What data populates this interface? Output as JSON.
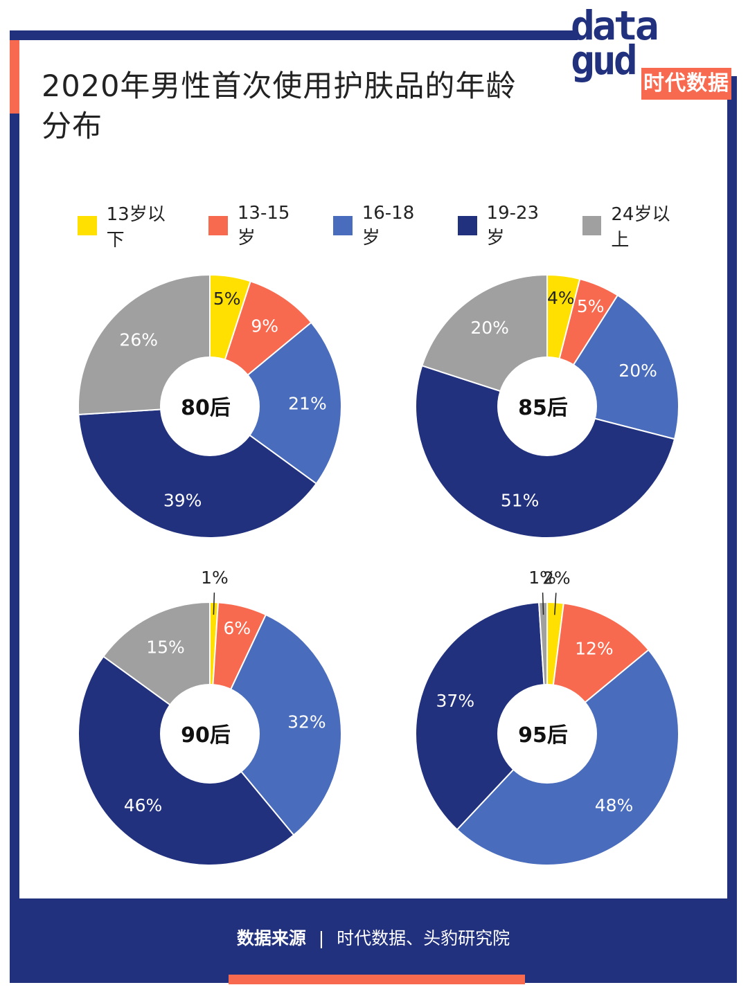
{
  "title": "2020年男性首次使用护肤品的年龄分布",
  "logo": {
    "word_top": "data",
    "word_bottom": "gud",
    "brand": "时代数据"
  },
  "colors": [
    "#ffe000",
    "#f86a50",
    "#4a6cbc",
    "#22317e",
    "#a0a0a0"
  ],
  "legend": [
    "13岁以下",
    "13-15岁",
    "16-18岁",
    "19-23岁",
    "24岁以上"
  ],
  "chart_data": [
    {
      "type": "pie",
      "center_label": "80后",
      "categories": [
        "13岁以下",
        "13-15岁",
        "16-18岁",
        "19-23岁",
        "24岁以上"
      ],
      "values": [
        5,
        9,
        21,
        39,
        26
      ],
      "labels": [
        "5%",
        "9%",
        "21%",
        "39%",
        "26%"
      ]
    },
    {
      "type": "pie",
      "center_label": "85后",
      "categories": [
        "13岁以下",
        "13-15岁",
        "16-18岁",
        "19-23岁",
        "24岁以上"
      ],
      "values": [
        4,
        5,
        20,
        51,
        20
      ],
      "labels": [
        "4%",
        "5%",
        "20%",
        "51%",
        "20%"
      ]
    },
    {
      "type": "pie",
      "center_label": "90后",
      "categories": [
        "13岁以下",
        "13-15岁",
        "16-18岁",
        "19-23岁",
        "24岁以上"
      ],
      "values": [
        1,
        6,
        32,
        46,
        15
      ],
      "labels": [
        "1%",
        "6%",
        "32%",
        "46%",
        "15%"
      ]
    },
    {
      "type": "pie",
      "center_label": "95后",
      "categories": [
        "13岁以下",
        "13-15岁",
        "16-18岁",
        "19-23岁",
        "24岁以上"
      ],
      "values": [
        2,
        12,
        48,
        37,
        1
      ],
      "labels": [
        "2%",
        "12%",
        "48%",
        "37%",
        "1%"
      ]
    }
  ],
  "footer": {
    "label": "数据来源",
    "separator": "|",
    "source": "时代数据、头豹研究院"
  }
}
